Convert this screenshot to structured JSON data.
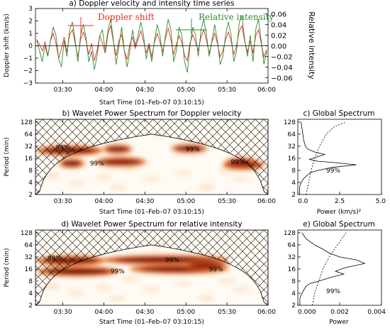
{
  "chart_data": [
    {
      "type": "line",
      "panel": "a",
      "title": "a) Doppler velocity and intensity time series",
      "xlabel": "Start Time (01–Feb–07 03:10:15)",
      "ylabel": "Doppler shift (km/s)",
      "ylabel_right": "Relative intensity",
      "xticks": [
        "03:30",
        "04:00",
        "04:30",
        "05:00",
        "05:30",
        "06:00"
      ],
      "xtick_minutes": [
        30,
        60,
        90,
        120,
        150,
        180
      ],
      "xlim_minutes": [
        10,
        180
      ],
      "ylim": [
        -3,
        3
      ],
      "yticks": [
        "−3",
        "−2",
        "−1",
        "0",
        "1",
        "2",
        "3"
      ],
      "ylim_right": [
        -0.07,
        0.07
      ],
      "yticks_right": [
        "−0.06",
        "−0.04",
        "−0.02",
        "0.00",
        "0.02",
        "0.04",
        "0.06"
      ],
      "legend": [
        "Doppler shift",
        "Relative intensity"
      ],
      "series": [
        {
          "name": "Doppler shift",
          "color": "#e8281e",
          "x": [
            11,
            13,
            15,
            17,
            19,
            21,
            23,
            25,
            27,
            29,
            31,
            33,
            35,
            37,
            39,
            41,
            43,
            45,
            47,
            49,
            51,
            53,
            55,
            57,
            59,
            61,
            63,
            65,
            67,
            69,
            71,
            73,
            75,
            77,
            79,
            81,
            83,
            85,
            87,
            89,
            91,
            93,
            95,
            97,
            99,
            101,
            103,
            105,
            107,
            109,
            111,
            113,
            115,
            117,
            119,
            121,
            123,
            125,
            127,
            129,
            131,
            133,
            135,
            137,
            139,
            141,
            143,
            145,
            147,
            149,
            151,
            153,
            155,
            157,
            159,
            161,
            163,
            165,
            167,
            169,
            171,
            173,
            175,
            177,
            179
          ],
          "y": [
            0.5,
            0.1,
            -0.4,
            0.3,
            -0.8,
            0.4,
            1.0,
            0.2,
            -1.0,
            -0.2,
            0.7,
            -0.5,
            0.9,
            1.3,
            0.2,
            -0.9,
            0.5,
            1.1,
            0.4,
            -0.7,
            0.2,
            -1.2,
            -0.4,
            0.8,
            0.2,
            -0.6,
            1.0,
            1.6,
            0.3,
            -0.8,
            0.4,
            0.9,
            -0.4,
            -1.1,
            0.1,
            0.7,
            -0.2,
            0.5,
            1.2,
            0.4,
            -0.6,
            0.2,
            -0.9,
            0.3,
            1.0,
            0.3,
            -0.5,
            0.6,
            1.4,
            0.5,
            -0.7,
            0.1,
            0.8,
            0.3,
            -0.8,
            -1.2,
            0.2,
            0.9,
            0.3,
            -0.4,
            0.7,
            1.3,
            0.4,
            -0.6,
            0.3,
            1.0,
            0.2,
            -0.9,
            -0.4,
            0.5,
            1.1,
            0.4,
            -0.7,
            0.0,
            1.2,
            1.6,
            0.3,
            -0.5,
            0.4,
            -0.6,
            0.8,
            1.3,
            0.2,
            -0.9,
            -0.3
          ]
        },
        {
          "name": "Relative intensity",
          "color": "#2e8b2e",
          "x": [
            11,
            13,
            15,
            17,
            19,
            21,
            23,
            25,
            27,
            29,
            31,
            33,
            35,
            37,
            39,
            41,
            43,
            45,
            47,
            49,
            51,
            53,
            55,
            57,
            59,
            61,
            63,
            65,
            67,
            69,
            71,
            73,
            75,
            77,
            79,
            81,
            83,
            85,
            87,
            89,
            91,
            93,
            95,
            97,
            99,
            101,
            103,
            105,
            107,
            109,
            111,
            113,
            115,
            117,
            119,
            121,
            123,
            125,
            127,
            129,
            131,
            133,
            135,
            137,
            139,
            141,
            143,
            145,
            147,
            149,
            151,
            153,
            155,
            157,
            159,
            161,
            163,
            165,
            167,
            169,
            171,
            173,
            175,
            177,
            179
          ],
          "y": [
            0.01,
            -0.01,
            -0.03,
            0.0,
            -0.02,
            0.01,
            0.035,
            0.02,
            -0.025,
            -0.04,
            0.01,
            -0.02,
            0.03,
            0.045,
            0.01,
            -0.03,
            0.02,
            0.04,
            0.015,
            -0.03,
            -0.01,
            -0.045,
            -0.02,
            0.02,
            0.03,
            -0.01,
            0.03,
            0.05,
            0.01,
            -0.035,
            0.0,
            0.035,
            -0.01,
            -0.04,
            -0.01,
            0.03,
            0.0,
            0.02,
            0.045,
            0.02,
            -0.025,
            0.0,
            -0.03,
            0.01,
            0.04,
            0.02,
            -0.02,
            0.02,
            0.05,
            0.03,
            -0.03,
            -0.01,
            0.035,
            0.02,
            -0.03,
            -0.05,
            0.0,
            0.035,
            0.02,
            -0.02,
            0.03,
            0.05,
            0.02,
            -0.02,
            0.01,
            0.04,
            0.01,
            -0.035,
            -0.02,
            0.02,
            0.045,
            0.02,
            -0.03,
            -0.01,
            0.045,
            0.055,
            0.01,
            -0.02,
            0.02,
            -0.03,
            0.03,
            0.05,
            0.01,
            -0.035,
            -0.01
          ]
        }
      ]
    },
    {
      "type": "heatmap",
      "panel": "b",
      "title": "b) Wavelet Power Spectrum for Doppler velocity",
      "xlabel": "Start Time (01–Feb–07 03:10:15)",
      "ylabel": "Period (min)",
      "xticks": [
        "03:30",
        "04:00",
        "04:30",
        "05:00",
        "05:30",
        "06:00"
      ],
      "xtick_minutes": [
        30,
        60,
        90,
        120,
        150,
        180
      ],
      "xlim_minutes": [
        10,
        180
      ],
      "yticks": [
        "2",
        "4",
        "8",
        "16",
        "32",
        "64",
        "128"
      ],
      "ylim_period_min": [
        2,
        150
      ],
      "contour_labels": [
        "99%",
        "99%",
        "99%",
        "99%"
      ],
      "power_peaks": [
        {
          "t_start": 12,
          "t_end": 58,
          "period": 25,
          "strength": 1.0
        },
        {
          "t_start": 60,
          "t_end": 80,
          "period": 27,
          "strength": 0.75
        },
        {
          "t_start": 110,
          "t_end": 135,
          "period": 28,
          "strength": 0.7
        },
        {
          "t_start": 28,
          "t_end": 45,
          "period": 12,
          "strength": 0.8
        },
        {
          "t_start": 55,
          "t_end": 90,
          "period": 13,
          "strength": 0.85
        },
        {
          "t_start": 148,
          "t_end": 176,
          "period": 11,
          "strength": 1.0
        },
        {
          "t_start": 150,
          "t_end": 170,
          "period": 13,
          "strength": 0.6
        }
      ]
    },
    {
      "type": "line",
      "panel": "c",
      "title": "c) Global Spectrum",
      "xlabel": "Power (km/s)²",
      "xlim": [
        0,
        5
      ],
      "xticks": [
        "0.0",
        "2.5",
        "5.0"
      ],
      "ylim_period_min": [
        2,
        150
      ],
      "yticks": [
        "2",
        "4",
        "8",
        "16",
        "32",
        "64",
        "128"
      ],
      "annotation": "99%",
      "series": [
        {
          "name": "",
          "x": [
            0.1,
            0.1,
            0.2,
            0.35,
            0.55,
            0.75,
            1.2,
            2.1,
            3.5,
            2.2,
            1.2,
            0.7,
            1.1,
            1.6,
            1.0,
            0.6,
            0.45,
            0.35,
            0.3,
            0.25,
            0.2
          ],
          "y": [
            2,
            3,
            4,
            5,
            6,
            7,
            8,
            9.5,
            11,
            12.5,
            13.5,
            15,
            17,
            20,
            23,
            27,
            32,
            45,
            64,
            90,
            128
          ]
        },
        {
          "name": "",
          "dashed": true,
          "x": [
            0.5,
            0.65,
            0.8,
            1.0,
            1.3,
            1.7,
            2.2,
            2.9
          ],
          "y": [
            2,
            4,
            8,
            16,
            32,
            64,
            100,
            128
          ]
        }
      ]
    },
    {
      "type": "heatmap",
      "panel": "d",
      "title": "d) Wavelet Power Spectrum for relative intensity",
      "xlabel": "Start Time (01–Feb–07 03:10:15)",
      "ylabel": "Period (min)",
      "xticks": [
        "03:30",
        "04:00",
        "04:30",
        "05:00",
        "05:30",
        "06:00"
      ],
      "xtick_minutes": [
        30,
        60,
        90,
        120,
        150,
        180
      ],
      "xlim_minutes": [
        10,
        180
      ],
      "yticks": [
        "2",
        "4",
        "8",
        "16",
        "32",
        "64",
        "128"
      ],
      "ylim_period_min": [
        2,
        150
      ],
      "contour_labels": [
        "99%",
        "99%",
        "99%",
        "99%"
      ],
      "power_peaks": [
        {
          "t_start": 12,
          "t_end": 60,
          "period": 26,
          "strength": 1.0
        },
        {
          "t_start": 60,
          "t_end": 150,
          "period": 27,
          "strength": 0.9
        },
        {
          "t_start": 12,
          "t_end": 70,
          "period": 14,
          "strength": 0.95
        },
        {
          "t_start": 80,
          "t_end": 150,
          "period": 16,
          "strength": 0.85
        },
        {
          "t_start": 120,
          "t_end": 150,
          "period": 20,
          "strength": 0.7
        }
      ]
    },
    {
      "type": "line",
      "panel": "e",
      "title": "e) Global Spectrum",
      "xlabel": "Power",
      "xlim": [
        0,
        0.004
      ],
      "xticks": [
        "0.000",
        "0.002",
        "0.004"
      ],
      "ylim_period_min": [
        2,
        150
      ],
      "yticks": [
        "2",
        "4",
        "8",
        "16",
        "32",
        "64",
        "128"
      ],
      "annotation": "99%",
      "series": [
        {
          "name": "",
          "x": [
            0.0001,
            0.0001,
            0.0002,
            0.0003,
            0.0004,
            0.0006,
            0.001,
            0.0016,
            0.0022,
            0.0018,
            0.0022,
            0.0032,
            0.0028,
            0.002,
            0.0015,
            0.0012,
            0.0008,
            0.0004,
            0.0002
          ],
          "y": [
            2,
            3,
            4,
            5,
            6,
            7,
            8,
            10,
            12,
            14,
            17,
            22,
            27,
            32,
            40,
            50,
            64,
            90,
            128
          ]
        },
        {
          "name": "",
          "dashed": true,
          "x": [
            0.0007,
            0.0008,
            0.001,
            0.0012,
            0.0015,
            0.0019,
            0.0023
          ],
          "y": [
            2,
            4,
            8,
            16,
            32,
            64,
            128
          ]
        }
      ]
    }
  ]
}
